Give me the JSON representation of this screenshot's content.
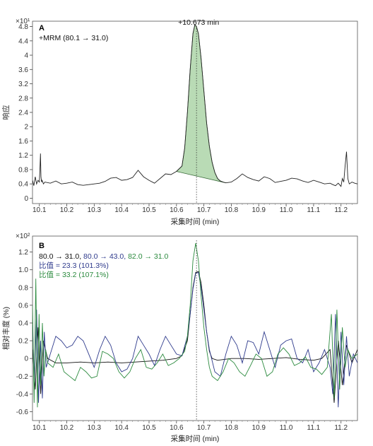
{
  "chart_data": [
    {
      "id": "A",
      "type": "line",
      "panel_label": "A",
      "trace_label": "+MRM (80.1 → 31.0)",
      "peak_label": "+10.673 min",
      "peak_x": 10.673,
      "scale_label": "×10¹",
      "xlabel": "采集时间 (min)",
      "ylabel": "响应",
      "xlim": [
        10.075,
        11.26
      ],
      "ylim": [
        -0.15,
        4.95
      ],
      "x_ticks": [
        10.1,
        10.2,
        10.3,
        10.4,
        10.5,
        10.6,
        10.7,
        10.8,
        10.9,
        11.0,
        11.1,
        11.2
      ],
      "x_tick_labels": [
        "10.1",
        "10.2",
        "10.3",
        "10.4",
        "10.5",
        "10.6",
        "10.7",
        "10.8",
        "10.9",
        "11.0",
        "11.1",
        "11.2"
      ],
      "y_ticks": [
        0,
        0.4,
        0.8,
        1.2,
        1.6,
        2.0,
        2.4,
        2.8,
        3.2,
        3.6,
        4.0,
        4.4,
        4.8
      ],
      "y_tick_labels": [
        "0",
        "0.4",
        "0.8",
        "1.2",
        "1.6",
        "2",
        "2.4",
        "2.8",
        "3.2",
        "3.6",
        "4",
        "4.4",
        "4.8"
      ],
      "colors": {
        "trace": "#222222",
        "peak_fill": "#b9dbb5",
        "peak_edge": "#3a6b3a"
      },
      "series": [
        {
          "values_x": [
            10.075,
            10.08,
            10.085,
            10.09,
            10.095,
            10.1,
            10.102,
            10.104,
            10.106,
            10.108,
            10.11,
            10.115,
            10.12,
            10.14,
            10.16,
            10.18,
            10.2,
            10.22,
            10.24,
            10.26,
            10.28,
            10.3,
            10.32,
            10.34,
            10.36,
            10.38,
            10.4,
            10.42,
            10.44,
            10.46,
            10.48,
            10.5,
            10.52,
            10.54,
            10.56,
            10.58,
            10.6,
            10.62,
            10.63,
            10.64,
            10.65,
            10.66,
            10.667,
            10.673,
            10.68,
            10.69,
            10.7,
            10.71,
            10.72,
            10.73,
            10.74,
            10.75,
            10.76,
            10.77,
            10.78,
            10.8,
            10.82,
            10.84,
            10.86,
            10.88,
            10.9,
            10.92,
            10.94,
            10.96,
            10.98,
            11.0,
            11.02,
            11.04,
            11.06,
            11.08,
            11.1,
            11.12,
            11.14,
            11.16,
            11.17,
            11.18,
            11.19,
            11.2,
            11.205,
            11.21,
            11.215,
            11.22,
            11.225,
            11.23,
            11.24,
            11.25,
            11.26
          ],
          "values_y": [
            0.5,
            0.35,
            0.6,
            0.4,
            0.5,
            0.45,
            0.8,
            1.25,
            0.6,
            0.45,
            0.5,
            0.4,
            0.45,
            0.42,
            0.48,
            0.4,
            0.42,
            0.45,
            0.38,
            0.36,
            0.38,
            0.4,
            0.42,
            0.47,
            0.56,
            0.58,
            0.5,
            0.52,
            0.58,
            0.78,
            0.6,
            0.5,
            0.42,
            0.55,
            0.68,
            0.66,
            0.75,
            0.9,
            1.4,
            2.4,
            3.6,
            4.6,
            4.85,
            4.8,
            4.6,
            3.9,
            3.0,
            2.1,
            1.45,
            1.0,
            0.72,
            0.55,
            0.48,
            0.45,
            0.43,
            0.45,
            0.55,
            0.68,
            0.58,
            0.52,
            0.48,
            0.6,
            0.55,
            0.44,
            0.47,
            0.5,
            0.56,
            0.54,
            0.48,
            0.44,
            0.5,
            0.45,
            0.4,
            0.42,
            0.38,
            0.35,
            0.42,
            0.33,
            0.55,
            0.45,
            0.9,
            1.3,
            0.55,
            0.4,
            0.45,
            0.42,
            0.4
          ]
        }
      ],
      "peak_fill_range": [
        10.6,
        10.78
      ]
    },
    {
      "id": "B",
      "type": "line",
      "panel_label": "B",
      "scale_label": "×10²",
      "xlabel": "采集时间 (min)",
      "ylabel": "相对丰度 (%)",
      "xlim": [
        10.075,
        11.26
      ],
      "ylim": [
        -0.7,
        1.38
      ],
      "x_ticks": [
        10.1,
        10.2,
        10.3,
        10.4,
        10.5,
        10.6,
        10.7,
        10.8,
        10.9,
        11.0,
        11.1,
        11.2
      ],
      "x_tick_labels": [
        "10.1",
        "10.2",
        "10.3",
        "10.4",
        "10.5",
        "10.6",
        "10.7",
        "10.8",
        "10.9",
        "11.0",
        "11.1",
        "11.2"
      ],
      "y_ticks": [
        -0.6,
        -0.4,
        -0.2,
        0,
        0.2,
        0.4,
        0.6,
        0.8,
        1.0,
        1.2
      ],
      "y_tick_labels": [
        "-0.6",
        "-0.4",
        "-0.2",
        "0",
        "0.2",
        "0.4",
        "0.6",
        "0.8",
        "1.0",
        "1.2"
      ],
      "marker_x": 10.673,
      "legend": {
        "line1": [
          {
            "text": "80.0 → 31.0,",
            "color": "#111111"
          },
          {
            "text": "80.0 → 43.0,",
            "color": "#2e3a8c"
          },
          {
            "text": "82.0 → 31.0",
            "color": "#2b8a3e"
          }
        ],
        "line2": {
          "text": "比值 = 23.3 (101.3%)",
          "color": "#2e3a8c"
        },
        "line3": {
          "text": "比值 = 33.2 (107.1%)",
          "color": "#2b8a3e"
        }
      },
      "series": [
        {
          "transition": "80.0 → 31.0",
          "color": "#111111",
          "values_x": [
            10.075,
            10.085,
            10.095,
            10.105,
            10.115,
            10.13,
            10.16,
            10.2,
            10.25,
            10.3,
            10.35,
            10.4,
            10.45,
            10.5,
            10.55,
            10.6,
            10.62,
            10.64,
            10.65,
            10.66,
            10.67,
            10.68,
            10.69,
            10.7,
            10.71,
            10.72,
            10.73,
            10.75,
            10.8,
            10.85,
            10.9,
            10.95,
            11.0,
            11.05,
            11.1,
            11.13,
            11.16,
            11.175,
            11.19,
            11.205,
            11.22,
            11.24,
            11.26
          ],
          "values_y": [
            0.1,
            -0.35,
            0.35,
            -0.4,
            0.2,
            0.0,
            -0.05,
            -0.05,
            -0.04,
            -0.05,
            -0.04,
            -0.05,
            -0.04,
            -0.03,
            -0.02,
            0.0,
            0.03,
            0.2,
            0.5,
            0.8,
            0.97,
            0.98,
            0.85,
            0.6,
            0.3,
            0.08,
            0.0,
            -0.02,
            0.0,
            0.0,
            -0.01,
            0.0,
            0.01,
            -0.01,
            -0.02,
            0.0,
            0.1,
            -0.5,
            0.2,
            -0.3,
            0.15,
            -0.05,
            0.1
          ]
        },
        {
          "transition": "80.0 → 43.0",
          "color": "#2e3a8c",
          "values_x": [
            10.075,
            10.082,
            10.09,
            10.097,
            10.104,
            10.111,
            10.118,
            10.125,
            10.14,
            10.16,
            10.18,
            10.2,
            10.22,
            10.24,
            10.26,
            10.28,
            10.3,
            10.32,
            10.34,
            10.36,
            10.38,
            10.4,
            10.42,
            10.44,
            10.46,
            10.48,
            10.5,
            10.52,
            10.54,
            10.56,
            10.58,
            10.6,
            10.62,
            10.64,
            10.65,
            10.66,
            10.67,
            10.68,
            10.69,
            10.7,
            10.71,
            10.72,
            10.74,
            10.76,
            10.78,
            10.8,
            10.82,
            10.84,
            10.86,
            10.88,
            10.9,
            10.92,
            10.94,
            10.96,
            10.98,
            11.0,
            11.02,
            11.04,
            11.06,
            11.08,
            11.1,
            11.12,
            11.14,
            11.16,
            11.17,
            11.18,
            11.19,
            11.2,
            11.21,
            11.22,
            11.23,
            11.245,
            11.26
          ],
          "values_y": [
            0.4,
            -0.3,
            0.55,
            -0.5,
            0.2,
            -0.45,
            0.3,
            -0.1,
            0.05,
            0.25,
            0.2,
            0.12,
            0.15,
            0.25,
            0.2,
            0.05,
            -0.1,
            0.1,
            0.25,
            0.15,
            -0.05,
            -0.15,
            -0.12,
            0.0,
            0.25,
            0.15,
            0.05,
            -0.08,
            0.1,
            0.25,
            0.15,
            0.05,
            0.03,
            0.25,
            0.5,
            0.78,
            0.96,
            0.97,
            0.8,
            0.55,
            0.3,
            0.1,
            -0.15,
            -0.2,
            0.05,
            0.25,
            0.15,
            -0.05,
            0.2,
            0.18,
            0.05,
            0.3,
            0.1,
            -0.1,
            0.15,
            0.2,
            0.22,
            0.0,
            -0.05,
            0.1,
            -0.15,
            -0.05,
            0.1,
            -0.1,
            -0.4,
            0.5,
            -0.55,
            0.3,
            -0.3,
            0.25,
            -0.2,
            0.05,
            -0.05
          ]
        },
        {
          "transition": "82.0 → 31.0",
          "color": "#2b8a3e",
          "values_x": [
            10.075,
            10.081,
            10.087,
            10.093,
            10.099,
            10.105,
            10.111,
            10.117,
            10.123,
            10.13,
            10.15,
            10.17,
            10.19,
            10.21,
            10.23,
            10.25,
            10.27,
            10.29,
            10.31,
            10.33,
            10.35,
            10.37,
            10.39,
            10.41,
            10.43,
            10.45,
            10.47,
            10.49,
            10.51,
            10.53,
            10.55,
            10.57,
            10.59,
            10.61,
            10.63,
            10.64,
            10.65,
            10.66,
            10.67,
            10.68,
            10.69,
            10.7,
            10.71,
            10.72,
            10.73,
            10.75,
            10.77,
            10.79,
            10.81,
            10.83,
            10.85,
            10.87,
            10.89,
            10.91,
            10.93,
            10.95,
            10.97,
            10.99,
            11.01,
            11.03,
            11.05,
            11.07,
            11.09,
            11.11,
            11.13,
            11.15,
            11.165,
            11.175,
            11.185,
            11.195,
            11.205,
            11.215,
            11.225,
            11.24,
            11.26
          ],
          "values_y": [
            0.6,
            -0.5,
            0.9,
            -0.55,
            0.5,
            -0.3,
            0.4,
            -0.2,
            0.1,
            -0.05,
            -0.1,
            0.05,
            -0.15,
            -0.2,
            -0.25,
            -0.1,
            -0.15,
            -0.22,
            -0.2,
            0.08,
            0.05,
            0.0,
            -0.15,
            -0.22,
            -0.15,
            0.0,
            0.1,
            -0.1,
            -0.12,
            -0.05,
            0.05,
            -0.08,
            -0.05,
            0.0,
            0.08,
            0.25,
            0.6,
            1.1,
            1.3,
            1.1,
            0.7,
            0.35,
            0.1,
            -0.1,
            -0.2,
            -0.25,
            -0.15,
            0.0,
            -0.05,
            -0.15,
            -0.2,
            -0.08,
            0.05,
            0.0,
            -0.2,
            -0.15,
            0.05,
            0.12,
            0.05,
            -0.08,
            -0.05,
            0.02,
            -0.1,
            -0.12,
            -0.18,
            -0.1,
            0.5,
            -0.45,
            0.55,
            -0.35,
            0.35,
            -0.1,
            0.1,
            0.0,
            0.05
          ]
        }
      ]
    }
  ]
}
